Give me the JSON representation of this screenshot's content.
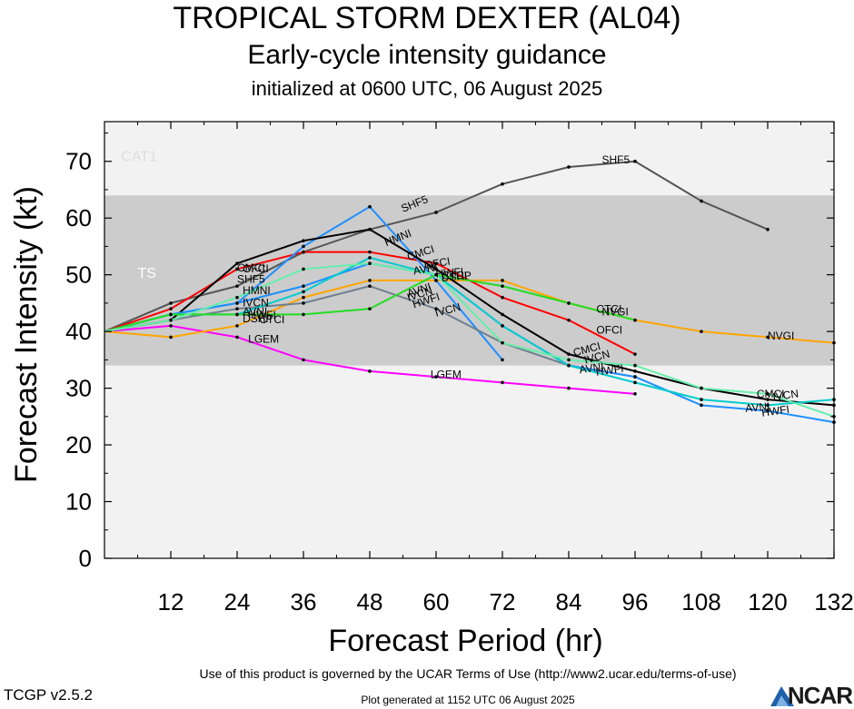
{
  "header": {
    "title": "TROPICAL STORM DEXTER (AL04)",
    "subtitle": "Early-cycle intensity guidance",
    "init": "initialized at 0600 UTC, 06 August 2025"
  },
  "footer": {
    "terms": "Use of this product is governed by the UCAR Terms of Use (http://www2.ucar.edu/terms-of-use)",
    "version": "TCGP v2.5.2",
    "generated": "Plot generated at 1152 UTC   06 August 2025",
    "logo": "NCAR"
  },
  "chart_data": {
    "type": "line",
    "xlabel": "Forecast Period (hr)",
    "ylabel": "Forecast Intensity (kt)",
    "xlim": [
      0,
      132
    ],
    "ylim": [
      0,
      77
    ],
    "xticks": [
      12,
      24,
      36,
      48,
      60,
      72,
      84,
      96,
      108,
      120,
      132
    ],
    "yticks": [
      0,
      10,
      20,
      30,
      40,
      50,
      60,
      70
    ],
    "bands": [
      {
        "label": "TS",
        "from": 34,
        "to": 64,
        "color": "#cccccc"
      },
      {
        "label": "CAT1",
        "from": 64,
        "to": 77,
        "color": "#f2f2f2"
      }
    ],
    "below_band_color": "#f2f2f2",
    "series": [
      {
        "name": "SHF5",
        "color": "#555555",
        "x": [
          0,
          12,
          24,
          36,
          48,
          60,
          72,
          84,
          96,
          108,
          120
        ],
        "y": [
          40,
          45,
          48,
          54,
          58,
          61,
          66,
          69,
          70,
          63,
          58
        ]
      },
      {
        "name": "LGEM",
        "color": "#ff00ff",
        "x": [
          0,
          12,
          24,
          36,
          48,
          60,
          72,
          84,
          96
        ],
        "y": [
          40,
          41,
          39,
          35,
          33,
          32,
          31,
          30,
          29
        ]
      },
      {
        "name": "NVGI",
        "color": "#ffa500",
        "x": [
          0,
          12,
          24,
          36,
          48,
          60,
          72,
          84,
          96,
          108,
          120,
          132
        ],
        "y": [
          40,
          39,
          41,
          46,
          49,
          49,
          49,
          45,
          42,
          40,
          39,
          38
        ]
      },
      {
        "name": "OFCI",
        "color": "#ff0000",
        "x": [
          0,
          12,
          24,
          36,
          48,
          60,
          72,
          84,
          96
        ],
        "y": [
          40,
          44,
          51,
          54,
          54,
          52,
          46,
          42,
          36
        ]
      },
      {
        "name": "HMNI",
        "color": "#1e90ff",
        "x": [
          0,
          12,
          24,
          36,
          48,
          60,
          72
        ],
        "y": [
          40,
          43,
          45,
          55,
          62,
          49,
          35
        ]
      },
      {
        "name": "CMCI",
        "color": "#000000",
        "x": [
          0,
          12,
          24,
          36,
          48,
          60,
          72,
          84,
          96,
          108,
          120,
          132
        ],
        "y": [
          40,
          42,
          52,
          56,
          58,
          51,
          43,
          36,
          33,
          30,
          28,
          27
        ]
      },
      {
        "name": "IVCN",
        "color": "#708090",
        "x": [
          0,
          12,
          24,
          36,
          48,
          60,
          72,
          84,
          96
        ],
        "y": [
          40,
          42,
          44,
          45,
          48,
          44,
          38,
          34,
          32
        ]
      },
      {
        "name": "AVNI",
        "color": "#1e90ff",
        "x": [
          0,
          12,
          24,
          36,
          48,
          60,
          72,
          84,
          96,
          108,
          120,
          132
        ],
        "y": [
          40,
          43,
          45,
          48,
          52,
          50,
          41,
          34,
          32,
          27,
          26,
          24
        ]
      },
      {
        "name": "HWFI",
        "color": "#00cccc",
        "x": [
          0,
          12,
          24,
          36,
          48,
          60,
          72,
          84,
          96,
          108,
          120,
          132
        ],
        "y": [
          40,
          43,
          43,
          47,
          53,
          50,
          41,
          34,
          31,
          28,
          27,
          28
        ]
      },
      {
        "name": "CTCI",
        "color": "#22dd22",
        "x": [
          0,
          12,
          24,
          36,
          48,
          60,
          72,
          84,
          96
        ],
        "y": [
          40,
          43,
          43,
          43,
          44,
          50,
          48,
          45,
          42
        ]
      },
      {
        "name": "DSHP",
        "color": "#66eeaa",
        "x": [
          0,
          12,
          24,
          36,
          48,
          60,
          72,
          84,
          96,
          108,
          120,
          132
        ],
        "y": [
          40,
          42,
          46,
          51,
          52,
          50,
          38,
          35,
          34,
          30,
          29,
          25
        ]
      }
    ],
    "labels": [
      {
        "text": "CAT1",
        "x": 3,
        "y": 70,
        "color": "#dddddd",
        "size": 16
      },
      {
        "text": "TS",
        "x": 6,
        "y": 49.5,
        "color": "#ffffff",
        "size": 16
      },
      {
        "text": "SHF5",
        "x": 90,
        "y": 69.6,
        "rot": 0
      },
      {
        "text": "SHF5",
        "x": 54,
        "y": 61,
        "rot": -22
      },
      {
        "text": "LGEM",
        "x": 26,
        "y": 38,
        "rot": 0
      },
      {
        "text": "LGEM",
        "x": 59,
        "y": 31.8,
        "rot": 0
      },
      {
        "text": "NVGI",
        "x": 120,
        "y": 38.6,
        "rot": 0
      },
      {
        "text": "NVGI",
        "x": 90,
        "y": 42.8,
        "rot": 0
      },
      {
        "text": "CTCI",
        "x": 89,
        "y": 43.3,
        "rot": 0
      },
      {
        "text": "OFCI",
        "x": 89,
        "y": 39.6,
        "rot": 0
      },
      {
        "text": "CMCI",
        "x": 24,
        "y": 50.6,
        "rot": 0
      },
      {
        "text": "OFCI",
        "x": 25,
        "y": 50.4,
        "rot": 0
      },
      {
        "text": "SHF5",
        "x": 24,
        "y": 48.6,
        "rot": 0
      },
      {
        "text": "HMNI",
        "x": 25,
        "y": 46.6,
        "rot": 0
      },
      {
        "text": "IVCN",
        "x": 25,
        "y": 44.4,
        "rot": 0
      },
      {
        "text": "AVNI",
        "x": 25,
        "y": 42.8,
        "rot": 0
      },
      {
        "text": "HWFI",
        "x": 26,
        "y": 42.3,
        "rot": 0
      },
      {
        "text": "DSHP",
        "x": 25,
        "y": 41.6,
        "rot": 0
      },
      {
        "text": "CTCI",
        "x": 28,
        "y": 41.5,
        "rot": 0
      },
      {
        "text": "HMNI",
        "x": 51,
        "y": 55,
        "rot": -22
      },
      {
        "text": "CMCI",
        "x": 55,
        "y": 52.5,
        "rot": -18
      },
      {
        "text": "AVNI",
        "x": 56,
        "y": 50,
        "rot": -10
      },
      {
        "text": "OFCI",
        "x": 58,
        "y": 51,
        "rot": -10
      },
      {
        "text": "HWFI",
        "x": 60,
        "y": 49.5,
        "rot": -5
      },
      {
        "text": "DSHP",
        "x": 61,
        "y": 48.8,
        "rot": -5
      },
      {
        "text": "CTCI",
        "x": 61,
        "y": 49.2,
        "rot": 0
      },
      {
        "text": "IVCN",
        "x": 55,
        "y": 45.3,
        "rot": -18
      },
      {
        "text": "HWFI",
        "x": 56,
        "y": 44.1,
        "rot": -18
      },
      {
        "text": "AVNI",
        "x": 55,
        "y": 46.0,
        "rot": -18
      },
      {
        "text": "IVCN",
        "x": 60,
        "y": 42.6,
        "rot": -15
      },
      {
        "text": "CMCI",
        "x": 85,
        "y": 35.6,
        "rot": -15
      },
      {
        "text": "IVCN",
        "x": 87,
        "y": 34.3,
        "rot": -15
      },
      {
        "text": "AVNI",
        "x": 86,
        "y": 32.6,
        "rot": -8
      },
      {
        "text": "HWFI",
        "x": 89,
        "y": 32.2,
        "rot": -8
      },
      {
        "text": "CMCI",
        "x": 118,
        "y": 28.3,
        "rot": 0
      },
      {
        "text": "IVCN",
        "x": 121,
        "y": 27.8,
        "rot": -8
      },
      {
        "text": "AVNI",
        "x": 116,
        "y": 25.8,
        "rot": -5
      },
      {
        "text": "HWFI",
        "x": 119,
        "y": 25.0,
        "rot": -8
      }
    ]
  }
}
